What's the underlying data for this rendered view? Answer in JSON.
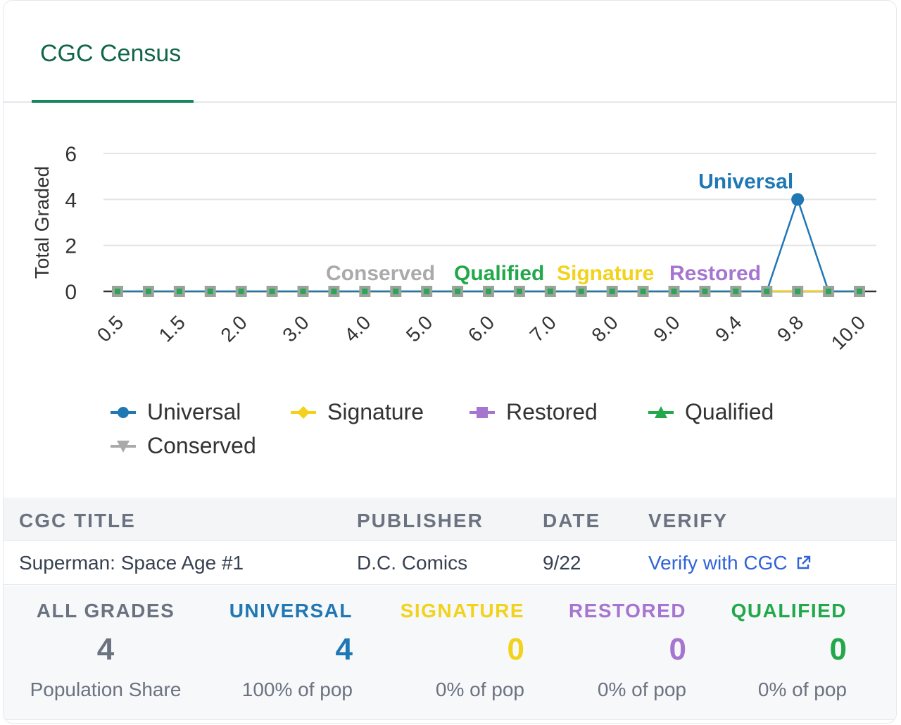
{
  "tabs": [
    {
      "label": "CGC Census",
      "active": true
    }
  ],
  "colors": {
    "universal": "#1f77b4",
    "signature": "#f2d21b",
    "restored": "#a575d0",
    "qualified": "#22a84a",
    "conserved": "#aaaaaa",
    "tab_accent": "#15885e",
    "link": "#2f63d8"
  },
  "chart_data": {
    "type": "line",
    "ylabel": "Total Graded",
    "xlabel": "",
    "ylim": [
      0,
      6
    ],
    "yticks": [
      0,
      2,
      4,
      6
    ],
    "grid": true,
    "legend_position": "bottom",
    "x": [
      "0.5",
      "1.0",
      "1.5",
      "1.8",
      "2.0",
      "2.5",
      "3.0",
      "3.5",
      "4.0",
      "4.5",
      "5.0",
      "5.5",
      "6.0",
      "6.5",
      "7.0",
      "7.5",
      "8.0",
      "8.5",
      "9.0",
      "9.2",
      "9.4",
      "9.6",
      "9.8",
      "9.9",
      "10.0"
    ],
    "xtick_labels": [
      "0.5",
      "1.5",
      "2.0",
      "3.0",
      "4.0",
      "5.0",
      "6.0",
      "7.0",
      "8.0",
      "9.0",
      "9.4",
      "9.8",
      "10.0"
    ],
    "series": [
      {
        "name": "Universal",
        "color": "#1f77b4",
        "marker": "circle",
        "values": [
          0,
          0,
          0,
          0,
          0,
          0,
          0,
          0,
          0,
          0,
          0,
          0,
          0,
          0,
          0,
          0,
          0,
          0,
          0,
          0,
          0,
          0,
          4,
          0,
          0
        ]
      },
      {
        "name": "Signature",
        "color": "#f2d21b",
        "marker": "diamond",
        "values": [
          0,
          0,
          0,
          0,
          0,
          0,
          0,
          0,
          0,
          0,
          0,
          0,
          0,
          0,
          0,
          0,
          0,
          0,
          0,
          0,
          0,
          0,
          0,
          0,
          0
        ]
      },
      {
        "name": "Restored",
        "color": "#a575d0",
        "marker": "square",
        "values": [
          0,
          0,
          0,
          0,
          0,
          0,
          0,
          0,
          0,
          0,
          0,
          0,
          0,
          0,
          0,
          0,
          0,
          0,
          0,
          0,
          0,
          0,
          0,
          0,
          0
        ]
      },
      {
        "name": "Qualified",
        "color": "#22a84a",
        "marker": "triangle",
        "values": [
          0,
          0,
          0,
          0,
          0,
          0,
          0,
          0,
          0,
          0,
          0,
          0,
          0,
          0,
          0,
          0,
          0,
          0,
          0,
          0,
          0,
          0,
          0,
          0,
          0
        ]
      },
      {
        "name": "Conserved",
        "color": "#aaaaaa",
        "marker": "triangle-down",
        "values": [
          0,
          0,
          0,
          0,
          0,
          0,
          0,
          0,
          0,
          0,
          0,
          0,
          0,
          0,
          0,
          0,
          0,
          0,
          0,
          0,
          0,
          0,
          0,
          0,
          0
        ]
      }
    ],
    "annotations": [
      "Universal",
      "Conserved",
      "Qualified",
      "Signature",
      "Restored"
    ]
  },
  "table": {
    "headers": [
      "CGC TITLE",
      "PUBLISHER",
      "DATE",
      "VERIFY"
    ],
    "row": {
      "title": "Superman: Space Age #1",
      "publisher": "D.C. Comics",
      "date": "9/22",
      "verify": "Verify with CGC"
    }
  },
  "stats": [
    {
      "title": "ALL GRADES",
      "value": "4",
      "sub": "Population Share",
      "color": "#6b7280"
    },
    {
      "title": "UNIVERSAL",
      "value": "4",
      "sub": "100% of pop",
      "color": "#1f77b4"
    },
    {
      "title": "SIGNATURE",
      "value": "0",
      "sub": "0% of pop",
      "color": "#f2d21b"
    },
    {
      "title": "RESTORED",
      "value": "0",
      "sub": "0% of pop",
      "color": "#a575d0"
    },
    {
      "title": "QUALIFIED",
      "value": "0",
      "sub": "0% of pop",
      "color": "#22a84a"
    }
  ]
}
